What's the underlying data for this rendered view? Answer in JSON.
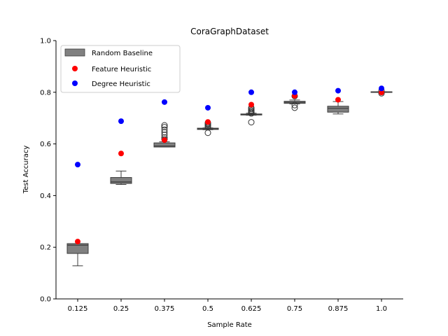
{
  "chart_data": {
    "type": "box+scatter",
    "title": "CoraGraphDataset",
    "xlabel": "Sample Rate",
    "ylabel": "Test Accuracy",
    "ylim": [
      0,
      1.0
    ],
    "yticks": [
      "0.0",
      "0.2",
      "0.4",
      "0.6",
      "0.8",
      "1.0"
    ],
    "categories": [
      "0.125",
      "0.25",
      "0.375",
      "0.5",
      "0.625",
      "0.75",
      "0.875",
      "1.0"
    ],
    "legend": {
      "placement": "top-left",
      "entries": [
        "Random Baseline",
        "Feature Heuristic",
        "Degree Heuristic"
      ]
    },
    "colors": {
      "box": "#808080",
      "feature": "#ff0000",
      "degree": "#0000ff"
    },
    "random_baseline": [
      {
        "whisker_low": 0.128,
        "q1": 0.176,
        "median": 0.208,
        "q3": 0.214,
        "whisker_high": 0.214,
        "outliers": []
      },
      {
        "whisker_low": 0.443,
        "q1": 0.447,
        "median": 0.453,
        "q3": 0.47,
        "whisker_high": 0.495,
        "outliers": []
      },
      {
        "whisker_low": 0.588,
        "q1": 0.588,
        "median": 0.592,
        "q3": 0.604,
        "whisker_high": 0.608,
        "outliers": [
          0.618,
          0.625,
          0.635,
          0.645,
          0.655,
          0.665,
          0.672
        ]
      },
      {
        "whisker_low": 0.655,
        "q1": 0.656,
        "median": 0.658,
        "q3": 0.661,
        "whisker_high": 0.662,
        "outliers": [
          0.643,
          0.665,
          0.67,
          0.675,
          0.678,
          0.682
        ]
      },
      {
        "whisker_low": 0.711,
        "q1": 0.712,
        "median": 0.714,
        "q3": 0.716,
        "whisker_high": 0.719,
        "outliers": [
          0.684,
          0.718,
          0.722,
          0.726,
          0.73,
          0.735,
          0.74
        ]
      },
      {
        "whisker_low": 0.755,
        "q1": 0.757,
        "median": 0.761,
        "q3": 0.765,
        "whisker_high": 0.77,
        "outliers": [
          0.74,
          0.75,
          0.785
        ]
      },
      {
        "whisker_low": 0.716,
        "q1": 0.723,
        "median": 0.738,
        "q3": 0.746,
        "whisker_high": 0.764,
        "outliers": []
      },
      {
        "whisker_low": 0.8,
        "q1": 0.8,
        "median": 0.801,
        "q3": 0.802,
        "whisker_high": 0.802,
        "outliers": [
          0.796,
          0.806
        ]
      }
    ],
    "feature_heuristic": [
      0.222,
      0.563,
      0.615,
      0.685,
      0.752,
      0.786,
      0.771,
      0.799
    ],
    "degree_heuristic": [
      0.52,
      0.688,
      0.762,
      0.74,
      0.8,
      0.8,
      0.806,
      0.815
    ]
  }
}
